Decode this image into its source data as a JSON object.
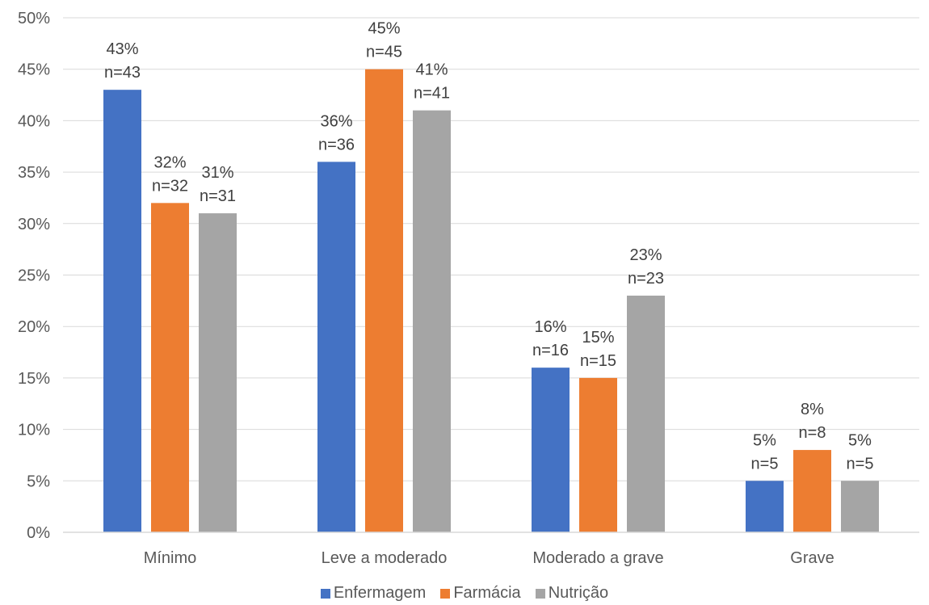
{
  "chart_data": {
    "type": "bar",
    "categories": [
      "Mínimo",
      "Leve a moderado",
      "Moderado a grave",
      "Grave"
    ],
    "series": [
      {
        "name": "Enfermagem",
        "color": "#4472C4",
        "values": [
          43,
          36,
          16,
          5
        ],
        "counts": [
          "n=43",
          "n=36",
          "n=16",
          "n=5"
        ]
      },
      {
        "name": "Farmácia",
        "color": "#ED7D31",
        "values": [
          32,
          45,
          15,
          8
        ],
        "counts": [
          "n=32",
          "n=45",
          "n=15",
          "n=8"
        ]
      },
      {
        "name": "Nutrição",
        "color": "#A5A5A5",
        "values": [
          31,
          41,
          23,
          5
        ],
        "counts": [
          "n=31",
          "n=41",
          "n=23",
          "n=5"
        ]
      }
    ],
    "ylim": [
      0,
      50
    ],
    "yticks": [
      "0%",
      "5%",
      "10%",
      "15%",
      "20%",
      "25%",
      "30%",
      "35%",
      "40%",
      "45%",
      "50%"
    ],
    "value_suffix": "%",
    "grid": true,
    "legend_position": "bottom",
    "title": "",
    "xlabel": "",
    "ylabel": ""
  }
}
